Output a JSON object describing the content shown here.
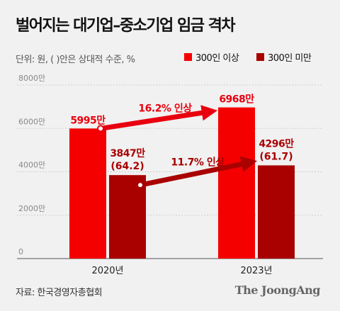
{
  "title": "벌어지는 대기업–중소기업 임금 격차",
  "unit_note": "단위: 원, ( )안은 상대적 수준, %",
  "legend": [
    {
      "label": "300인 이상",
      "color": "#f40000"
    },
    {
      "label": "300인 미만",
      "color": "#a90000"
    }
  ],
  "source": "자료: 한국경영자총협회",
  "brand": "The JoongAng",
  "chart_data": {
    "type": "bar",
    "categories": [
      "2020년",
      "2023년"
    ],
    "ylim": [
      0,
      8000
    ],
    "yticks": [
      0,
      2000,
      4000,
      6000,
      8000
    ],
    "ytick_labels": [
      "0",
      "2000만",
      "4000만",
      "6000만",
      "8000만"
    ],
    "grid": true,
    "series": [
      {
        "name": "300인 이상",
        "color": "#f40000",
        "values": [
          5995,
          6968
        ],
        "value_labels": [
          "5995만",
          "6968만"
        ],
        "sub_labels": [
          "",
          ""
        ],
        "label_color": "#e8000f"
      },
      {
        "name": "300인 미만",
        "color": "#a90000",
        "values": [
          3847,
          4296
        ],
        "value_labels": [
          "3847만",
          "4296만"
        ],
        "sub_labels": [
          "(64.2)",
          "(61.7)"
        ],
        "label_color": "#a90000"
      }
    ],
    "annotations": [
      {
        "series_index": 0,
        "text": "16.2% 인상",
        "color": "#e8000f"
      },
      {
        "series_index": 1,
        "text": "11.7% 인상",
        "color": "#a90000"
      }
    ]
  }
}
